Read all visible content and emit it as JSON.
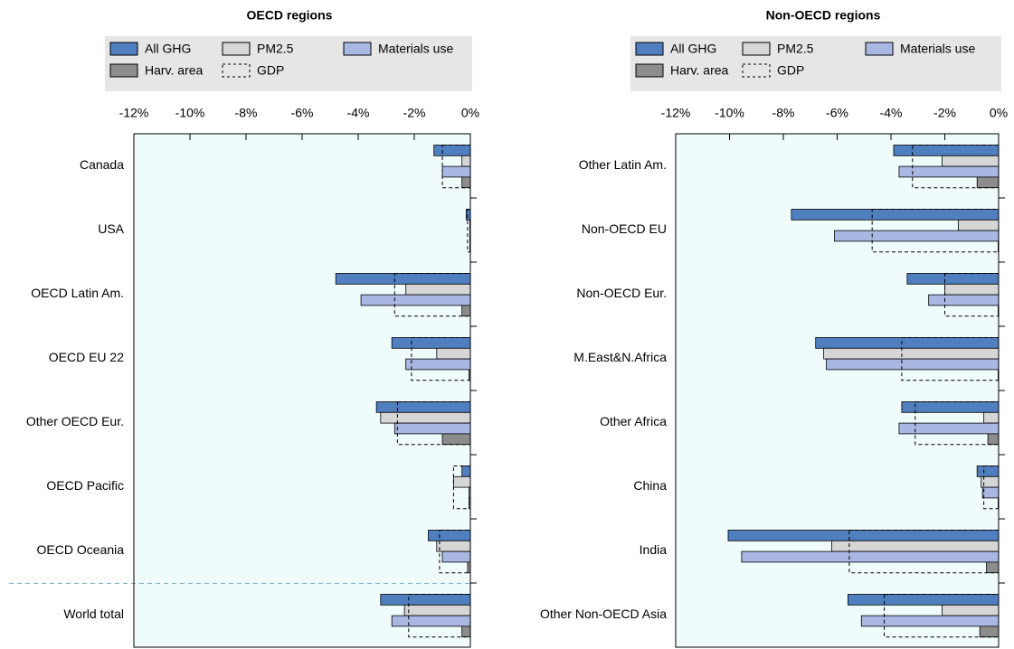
{
  "chart_data": [
    {
      "type": "bar",
      "orientation": "horizontal",
      "title": "OECD regions",
      "categories": [
        "Canada",
        "USA",
        "OECD Latin Am.",
        "OECD EU 22",
        "Other OECD Eur.",
        "OECD Pacific",
        "OECD Oceania",
        "World total"
      ],
      "series": [
        {
          "name": "All GHG",
          "color": "#4f7fbf",
          "values": [
            -1.3,
            -0.15,
            -4.8,
            -2.8,
            -3.35,
            -0.3,
            -1.5,
            -3.2
          ]
        },
        {
          "name": "PM2.5",
          "color": "#d6d6d6",
          "values": [
            -0.3,
            -0.02,
            -2.3,
            -1.2,
            -3.2,
            -0.6,
            -1.2,
            -2.35
          ]
        },
        {
          "name": "Materials use",
          "color": "#a9b7e3",
          "values": [
            -1.0,
            -0.02,
            -3.9,
            -2.3,
            -2.7,
            -0.05,
            -1.0,
            -2.8
          ]
        },
        {
          "name": "Harv. area",
          "color": "#8c8c8c",
          "values": [
            -0.3,
            -0.02,
            -0.3,
            -0.05,
            -1.0,
            -0.05,
            -0.1,
            -0.3
          ]
        },
        {
          "name": "GDP",
          "color": "none",
          "dashed": true,
          "values": [
            -1.0,
            -0.1,
            -2.7,
            -2.1,
            -2.6,
            -0.6,
            -1.1,
            -2.2
          ]
        }
      ],
      "xlim": [
        -12,
        0
      ],
      "xticks": [
        {
          "value": -12,
          "label": "-12%"
        },
        {
          "value": -10,
          "label": "-10%"
        },
        {
          "value": -8,
          "label": "-8%"
        },
        {
          "value": -6,
          "label": "-6%"
        },
        {
          "value": -4,
          "label": "-4%"
        },
        {
          "value": -2,
          "label": "-2%"
        },
        {
          "value": 0,
          "label": "0%"
        }
      ],
      "separator_before_last": true
    },
    {
      "type": "bar",
      "orientation": "horizontal",
      "title": "Non-OECD regions",
      "categories": [
        "Other Latin Am.",
        "Non-OECD EU",
        "Non-OECD Eur.",
        "M.East&N.Africa",
        "Other Africa",
        "China",
        "India",
        "Other Non-OECD Asia"
      ],
      "series": [
        {
          "name": "All GHG",
          "color": "#4f7fbf",
          "values": [
            -3.9,
            -7.7,
            -3.4,
            -6.8,
            -3.6,
            -0.8,
            -10.05,
            -5.6
          ]
        },
        {
          "name": "PM2.5",
          "color": "#d6d6d6",
          "values": [
            -2.1,
            -1.5,
            -2.0,
            -6.5,
            -0.55,
            -0.65,
            -6.2,
            -2.1
          ]
        },
        {
          "name": "Materials use",
          "color": "#a9b7e3",
          "values": [
            -3.7,
            -6.1,
            -2.6,
            -6.4,
            -3.7,
            -0.6,
            -9.55,
            -5.1
          ]
        },
        {
          "name": "Harv. area",
          "color": "#8c8c8c",
          "values": [
            -0.8,
            -0.02,
            -0.02,
            -0.02,
            -0.4,
            -0.02,
            -0.45,
            -0.7
          ]
        },
        {
          "name": "GDP",
          "color": "none",
          "dashed": true,
          "values": [
            -3.2,
            -4.7,
            -2.0,
            -3.6,
            -3.1,
            -0.55,
            -5.55,
            -4.25
          ]
        }
      ],
      "xlim": [
        -12,
        0
      ],
      "xticks": [
        {
          "value": -12,
          "label": "-12%"
        },
        {
          "value": -10,
          "label": "-10%"
        },
        {
          "value": -8,
          "label": "-8%"
        },
        {
          "value": -6,
          "label": "-6%"
        },
        {
          "value": -4,
          "label": "-4%"
        },
        {
          "value": -2,
          "label": "-2%"
        },
        {
          "value": 0,
          "label": "0%"
        }
      ],
      "separator_before_last": false
    }
  ]
}
